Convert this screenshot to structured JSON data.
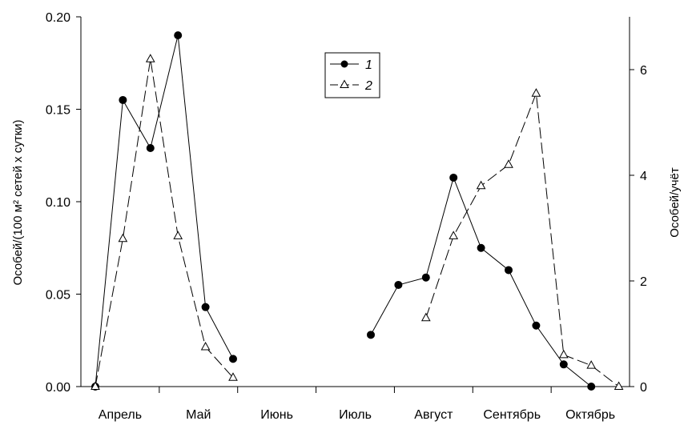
{
  "chart_data": {
    "type": "line",
    "title": "",
    "ylabel_left": "Особей/(100 м² сетей х сутки)",
    "ylabel_right": "Особей/учёт",
    "ylim_left": [
      0,
      0.2
    ],
    "yticks_left": [
      "0.00",
      "0.05",
      "0.10",
      "0.15",
      "0.20"
    ],
    "ylim_right": [
      0,
      7
    ],
    "yticks_right": [
      "0",
      "2",
      "4",
      "6"
    ],
    "months": [
      "Апрель",
      "Май",
      "Июнь",
      "Июль",
      "Август",
      "Сентябрь",
      "Октябрь"
    ],
    "x_axis_note": "x = sampling period index (half-month steps from early April to late October)",
    "xlim": [
      0,
      19.5
    ],
    "legend_position": "top-center",
    "series": [
      {
        "name": "1",
        "axis": "left",
        "marker": "filled-circle",
        "line_style": "solid",
        "segments": [
          {
            "x": [
              0,
              1,
              2,
              3,
              4,
              5
            ],
            "y": [
              0.0,
              0.155,
              0.129,
              0.19,
              0.043,
              0.015
            ]
          },
          {
            "x": [
              10,
              11,
              12,
              13,
              14,
              15,
              16,
              17,
              18
            ],
            "y": [
              0.028,
              0.055,
              0.059,
              0.113,
              0.075,
              0.063,
              0.033,
              0.012,
              0.0
            ]
          }
        ]
      },
      {
        "name": "2",
        "axis": "right",
        "marker": "open-triangle",
        "line_style": "dashed",
        "segments": [
          {
            "x": [
              0,
              1,
              2,
              3,
              4,
              5
            ],
            "y": [
              0.0,
              2.8,
              6.2,
              2.85,
              0.75,
              0.17
            ]
          },
          {
            "x": [
              12,
              13,
              14,
              15,
              16,
              17,
              18,
              19
            ],
            "y": [
              1.3,
              2.85,
              3.8,
              4.2,
              5.55,
              0.6,
              0.4,
              0.0
            ]
          }
        ]
      }
    ]
  }
}
